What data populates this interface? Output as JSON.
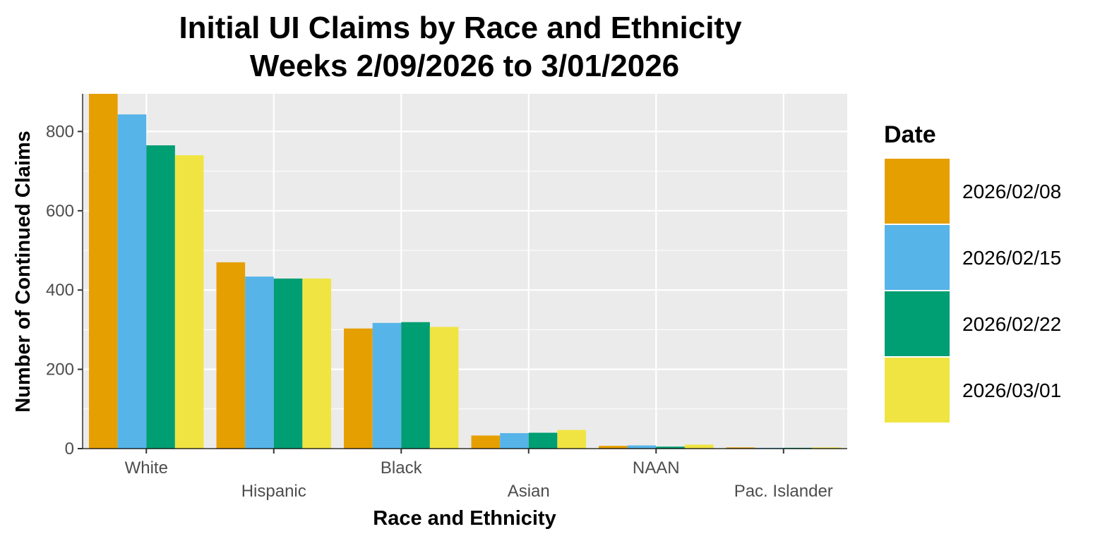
{
  "chart_data": {
    "type": "bar",
    "title_line1": "Initial UI Claims by Race and Ethnicity",
    "title_line2": "Weeks 2/09/2026 to 3/01/2026",
    "xlabel": "Race and Ethnicity",
    "ylabel": "Number of Continued Claims",
    "ylim": [
      0,
      895
    ],
    "yticks": [
      0,
      200,
      400,
      600,
      800
    ],
    "grid": true,
    "legend_title": "Date",
    "legend_position": "right",
    "categories": [
      "White",
      "Hispanic",
      "Black",
      "Asian",
      "NAAN",
      "Pac. Islander"
    ],
    "series": [
      {
        "name": "2026/02/08",
        "color": "#E69F00",
        "values": [
          895,
          470,
          303,
          33,
          7,
          3
        ]
      },
      {
        "name": "2026/02/15",
        "color": "#56B4E9",
        "values": [
          843,
          434,
          317,
          39,
          8,
          2
        ]
      },
      {
        "name": "2026/02/22",
        "color": "#009E73",
        "values": [
          765,
          429,
          319,
          40,
          5,
          2
        ]
      },
      {
        "name": "2026/03/01",
        "color": "#F0E442",
        "values": [
          740,
          429,
          307,
          47,
          10,
          3
        ]
      }
    ]
  }
}
